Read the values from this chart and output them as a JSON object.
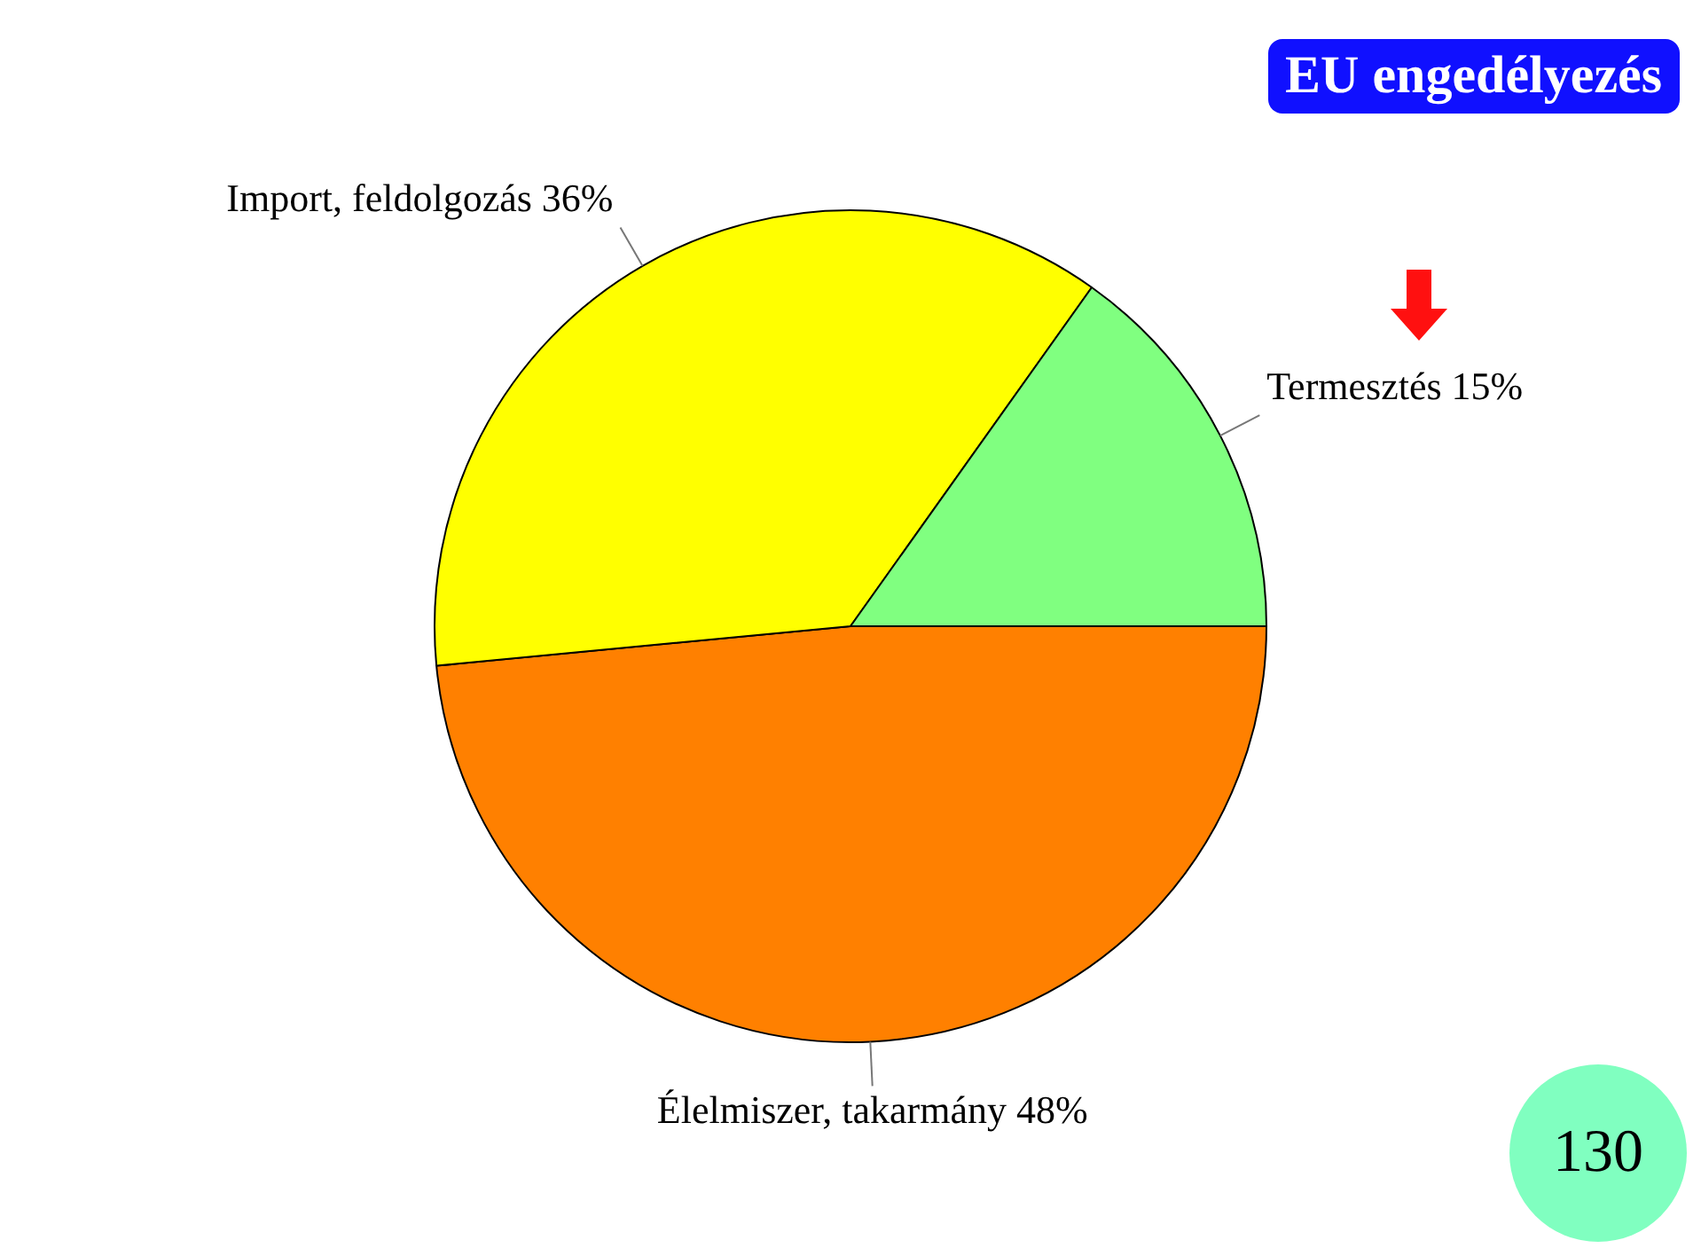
{
  "chart_data": {
    "type": "pie",
    "title": "EU engedélyezés",
    "categories": [
      "Élelmiszer, takarmány",
      "Import, feldolgozás",
      "Termesztés"
    ],
    "values": [
      48,
      36,
      15
    ],
    "value_labels": [
      "48%",
      "36%",
      "15%"
    ],
    "colors": [
      "#ff8000",
      "#ffff00",
      "#80ff80"
    ],
    "legend": false,
    "annotations": [
      "130"
    ]
  }
}
